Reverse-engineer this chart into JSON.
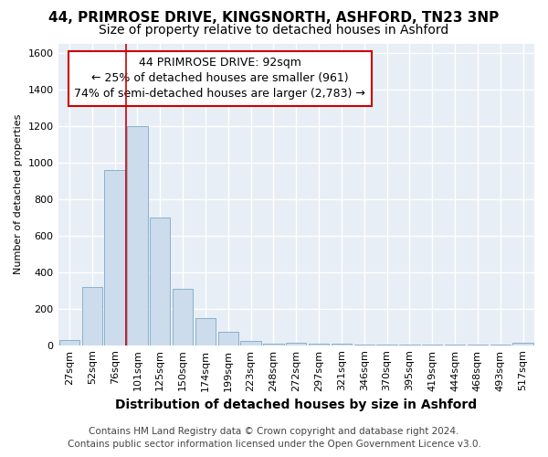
{
  "title": "44, PRIMROSE DRIVE, KINGSNORTH, ASHFORD, TN23 3NP",
  "subtitle": "Size of property relative to detached houses in Ashford",
  "xlabel": "Distribution of detached houses by size in Ashford",
  "ylabel": "Number of detached properties",
  "footer_line1": "Contains HM Land Registry data © Crown copyright and database right 2024.",
  "footer_line2": "Contains public sector information licensed under the Open Government Licence v3.0.",
  "categories": [
    "27sqm",
    "52sqm",
    "76sqm",
    "101sqm",
    "125sqm",
    "150sqm",
    "174sqm",
    "199sqm",
    "223sqm",
    "248sqm",
    "272sqm",
    "297sqm",
    "321sqm",
    "346sqm",
    "370sqm",
    "395sqm",
    "419sqm",
    "444sqm",
    "468sqm",
    "493sqm",
    "517sqm"
  ],
  "values": [
    28,
    320,
    960,
    1200,
    700,
    310,
    150,
    75,
    22,
    10,
    14,
    10,
    8,
    3,
    3,
    3,
    3,
    3,
    3,
    3,
    12
  ],
  "bar_color": "#ccdcec",
  "bar_edge_color": "#8ab0cc",
  "annotation_line1": "44 PRIMROSE DRIVE: 92sqm",
  "annotation_line2": "← 25% of detached houses are smaller (961)",
  "annotation_line3": "74% of semi-detached houses are larger (2,783) →",
  "annotation_box_color": "white",
  "annotation_box_edge_color": "#cc0000",
  "vline_color": "#cc0000",
  "ylim": [
    0,
    1650
  ],
  "yticks": [
    0,
    200,
    400,
    600,
    800,
    1000,
    1200,
    1400,
    1600
  ],
  "background_color": "#ffffff",
  "plot_background_color": "#e8eef5",
  "title_fontsize": 11,
  "subtitle_fontsize": 10,
  "xlabel_fontsize": 10,
  "ylabel_fontsize": 8,
  "tick_fontsize": 8,
  "annotation_fontsize": 9,
  "footer_fontsize": 7.5
}
